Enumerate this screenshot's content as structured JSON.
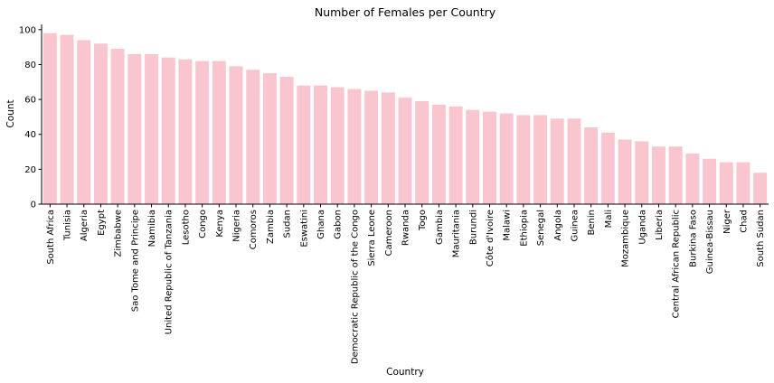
{
  "chart_data": {
    "type": "bar",
    "title": "Number of Females per Country",
    "xlabel": "Country",
    "ylabel": "Count",
    "ylim": [
      0,
      103
    ],
    "yticks": [
      0,
      20,
      40,
      60,
      80,
      100
    ],
    "grid": false,
    "bar_color": "#f9c6cf",
    "categories": [
      "South Africa",
      "Tunisia",
      "Algeria",
      "Egypt",
      "Zimbabwe",
      "Sao Tome and Principe",
      "Namibia",
      "United Republic of Tanzania",
      "Lesotho",
      "Congo",
      "Kenya",
      "Nigeria",
      "Comoros",
      "Zambia",
      "Sudan",
      "Eswatini",
      "Ghana",
      "Gabon",
      "Democratic Republic of the Congo",
      "Sierra Leone",
      "Cameroon",
      "Rwanda",
      "Togo",
      "Gambia",
      "Mauritania",
      "Burundi",
      "Côte d'Ivoire",
      "Malawi",
      "Ethiopia",
      "Senegal",
      "Angola",
      "Guinea",
      "Benin",
      "Mali",
      "Mozambique",
      "Uganda",
      "Liberia",
      "Central African Republic",
      "Burkina Faso",
      "Guinea-Bissau",
      "Niger",
      "Chad",
      "South Sudan"
    ],
    "values": [
      98,
      97,
      94,
      92,
      89,
      86,
      86,
      84,
      83,
      82,
      82,
      79,
      77,
      75,
      73,
      68,
      68,
      67,
      66,
      65,
      64,
      61,
      59,
      57,
      56,
      54,
      53,
      52,
      51,
      51,
      49,
      49,
      44,
      41,
      37,
      36,
      33,
      33,
      29,
      26,
      24,
      24,
      18
    ]
  }
}
